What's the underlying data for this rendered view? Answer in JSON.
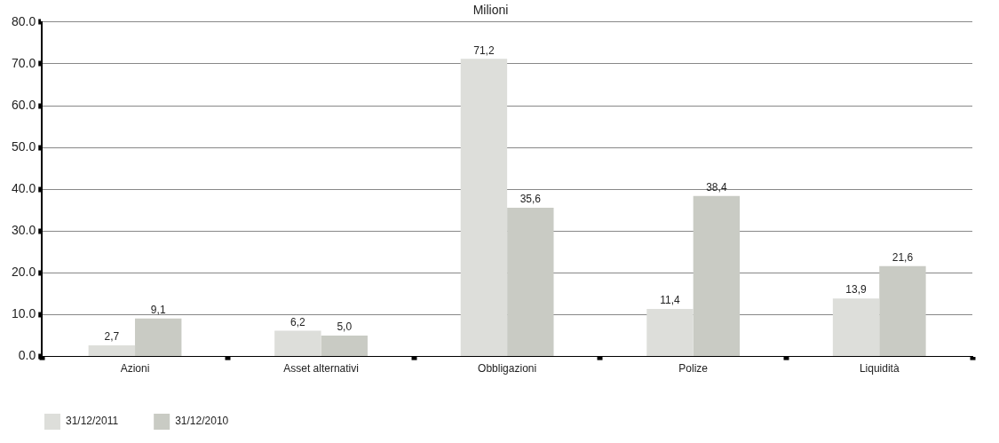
{
  "chart_data": {
    "type": "bar",
    "title": "Milioni",
    "categories": [
      "Azioni",
      "Asset alternativi",
      "Obbligazioni",
      "Polize",
      "Liquidità"
    ],
    "series": [
      {
        "name": "31/12/2011",
        "color": "#dddeda",
        "values": [
          2.7,
          6.2,
          71.2,
          11.4,
          13.9
        ],
        "value_labels": [
          "2,7",
          "6,2",
          "71,2",
          "11,4",
          "13,9"
        ]
      },
      {
        "name": "31/12/2010",
        "color": "#c9cbc4",
        "values": [
          9.1,
          5.0,
          35.6,
          38.4,
          21.6
        ],
        "value_labels": [
          "9,1",
          "5,0",
          "35,6",
          "38,4",
          "21,6"
        ]
      }
    ],
    "ylim": [
      0,
      80
    ],
    "yticks": [
      {
        "value": 0,
        "label": "0.0"
      },
      {
        "value": 10,
        "label": "10.0"
      },
      {
        "value": 20,
        "label": "20.0"
      },
      {
        "value": 30,
        "label": "30.0"
      },
      {
        "value": 40,
        "label": "40.0"
      },
      {
        "value": 50,
        "label": "50.0"
      },
      {
        "value": 60,
        "label": "60.0"
      },
      {
        "value": 70,
        "label": "70.0"
      },
      {
        "value": 80,
        "label": "80.0"
      }
    ],
    "grid": "y",
    "legend": "bottom left"
  }
}
